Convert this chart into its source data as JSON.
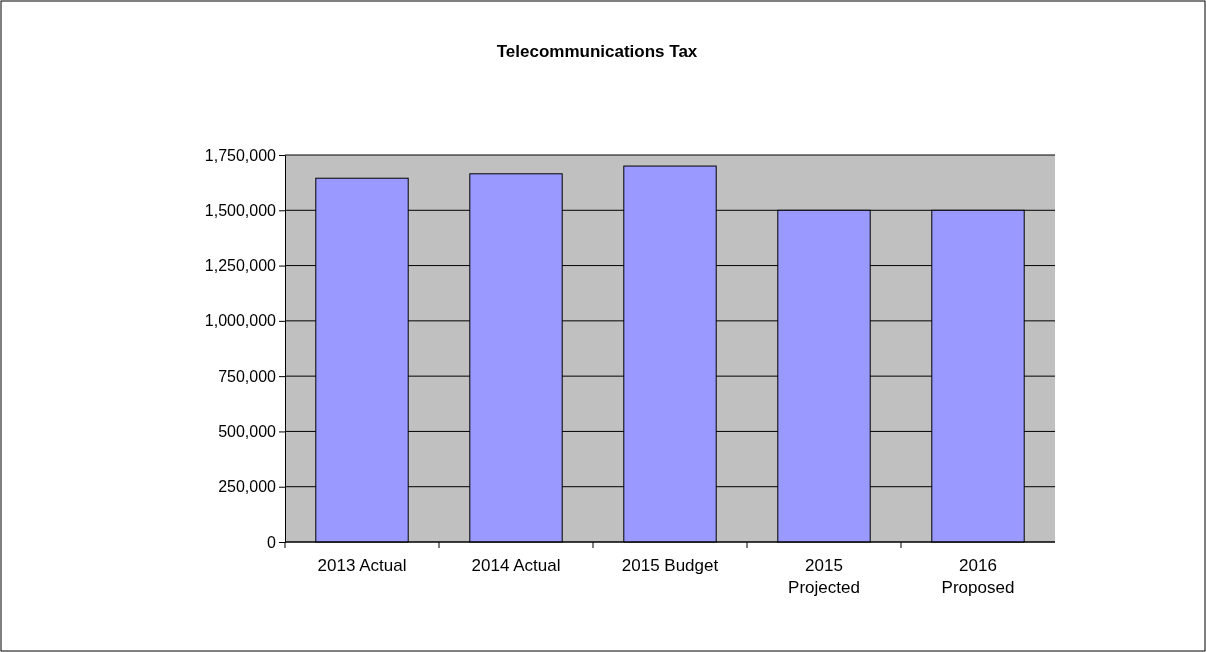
{
  "chart_data": {
    "type": "bar",
    "title": "Telecommunications Tax",
    "categories": [
      "2013 Actual",
      "2014 Actual",
      "2015 Budget",
      "2015\nProjected",
      "2016\nProposed"
    ],
    "values": [
      1645000,
      1665000,
      1700000,
      1500000,
      1500000
    ],
    "color": "#9999ff",
    "ylim": [
      0,
      1750000
    ],
    "yticks": [
      {
        "value": 0,
        "label": "0"
      },
      {
        "value": 250000,
        "label": "250,000"
      },
      {
        "value": 500000,
        "label": "500,000"
      },
      {
        "value": 750000,
        "label": "750,000"
      },
      {
        "value": 1000000,
        "label": "1,000,000"
      },
      {
        "value": 1250000,
        "label": "1,250,000"
      },
      {
        "value": 1500000,
        "label": "1,500,000"
      },
      {
        "value": 1750000,
        "label": "1,750,000"
      }
    ],
    "grid": "y"
  }
}
